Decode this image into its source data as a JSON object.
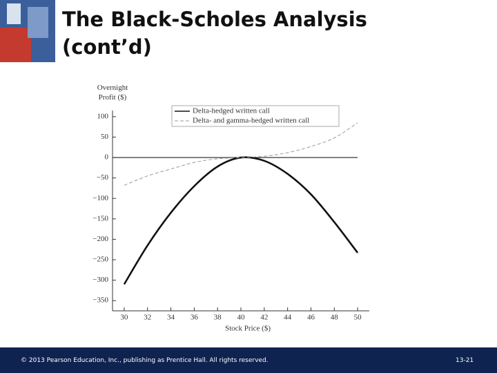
{
  "header": {
    "title": "The Black-Scholes Analysis (cont’d)"
  },
  "chart_data": {
    "type": "line",
    "ylabel": "Overnight Profit ($)",
    "xlabel": "Stock Price ($)",
    "x": [
      30,
      32,
      34,
      36,
      38,
      40,
      42,
      44,
      46,
      48,
      50
    ],
    "series": [
      {
        "name": "Delta-hedged written call",
        "color": "#111111",
        "style": "solid",
        "values": [
          -310,
          -215,
          -135,
          -70,
          -22,
          0,
          -8,
          -40,
          -90,
          -158,
          -233
        ]
      },
      {
        "name": "Delta- and gamma-hedged written call",
        "color": "#999999",
        "style": "dashed",
        "values": [
          -68,
          -45,
          -28,
          -12,
          -3,
          0,
          3,
          12,
          27,
          48,
          85
        ]
      }
    ],
    "xlim": [
      29,
      51
    ],
    "xticks": [
      30,
      32,
      34,
      36,
      38,
      40,
      42,
      44,
      46,
      48,
      50
    ],
    "ylim": [
      -375,
      115
    ],
    "yticks": [
      100,
      50,
      0,
      {
        "value": -50,
        "label": "−50"
      },
      {
        "value": -100,
        "label": "−100"
      },
      {
        "value": -150,
        "label": "−150"
      },
      {
        "value": -200,
        "label": "−200"
      },
      {
        "value": -250,
        "label": "−250"
      },
      {
        "value": -300,
        "label": "−300"
      },
      {
        "value": -350,
        "label": "−350"
      }
    ],
    "legend": "top"
  },
  "footer": {
    "copyright": "© 2013 Pearson Education, Inc., publishing as Prentice Hall. All rights reserved.",
    "page": "13-21"
  }
}
